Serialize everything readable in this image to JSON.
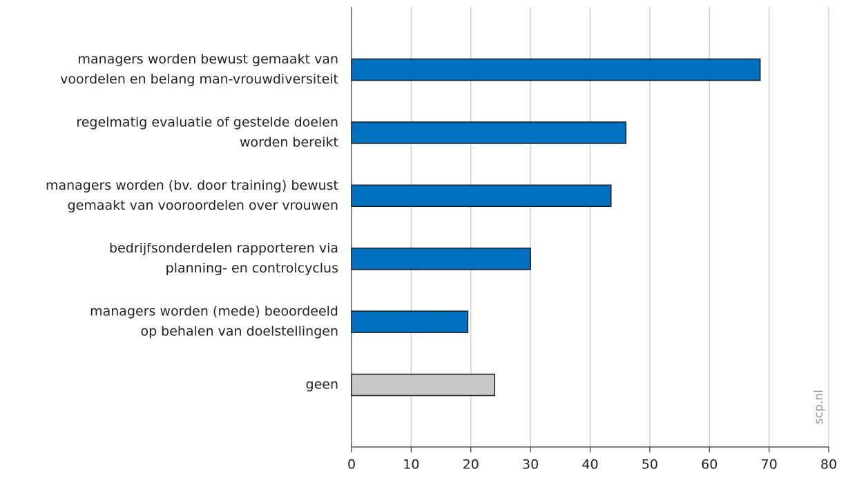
{
  "chart_data": {
    "type": "barh",
    "categories": [
      [
        "managers worden bewust gemaakt van",
        "voordelen en belang man-vrouwdiversiteit"
      ],
      [
        "regelmatig evaluatie of gestelde doelen",
        "worden bereikt"
      ],
      [
        "managers worden (bv. door training) bewust",
        "gemaakt van vooroordelen over vrouwen"
      ],
      [
        "bedrijfsonderdelen rapporteren via",
        "planning- en controlcyclus"
      ],
      [
        "managers worden (mede) beoordeeld",
        "op behalen van doelstellingen"
      ],
      [
        "geen"
      ]
    ],
    "values": [
      68.5,
      46,
      43.5,
      30,
      19.5,
      24
    ],
    "colors": [
      "#0070c0",
      "#0070c0",
      "#0070c0",
      "#0070c0",
      "#0070c0",
      "#c8c8c8"
    ],
    "xlim": [
      0,
      80
    ],
    "xticks": [
      0,
      10,
      20,
      30,
      40,
      50,
      60,
      70,
      80
    ],
    "grid": true,
    "watermark": "scp.nl"
  }
}
